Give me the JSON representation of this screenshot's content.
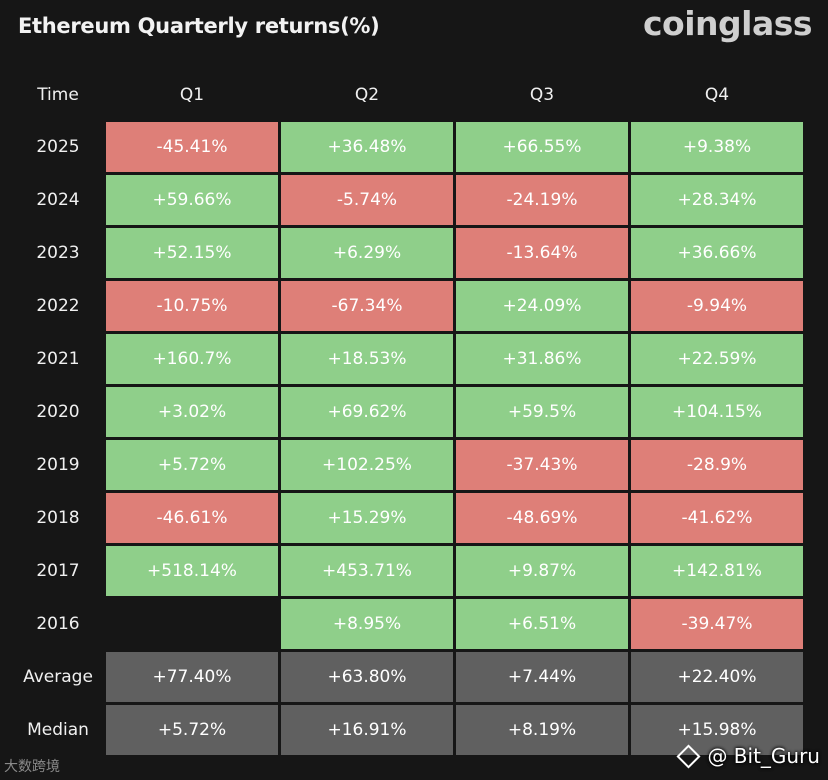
{
  "header": {
    "title": "Ethereum Quarterly returns(%)",
    "brand": "coinglass"
  },
  "chart_data": {
    "type": "table",
    "title": "Ethereum Quarterly returns(%)",
    "columns": [
      "Time",
      "Q1",
      "Q2",
      "Q3",
      "Q4"
    ],
    "rows": [
      {
        "label": "2025",
        "cells": [
          "-45.41%",
          "+36.48%",
          "+66.55%",
          "+9.38%"
        ]
      },
      {
        "label": "2024",
        "cells": [
          "+59.66%",
          "-5.74%",
          "-24.19%",
          "+28.34%"
        ]
      },
      {
        "label": "2023",
        "cells": [
          "+52.15%",
          "+6.29%",
          "-13.64%",
          "+36.66%"
        ]
      },
      {
        "label": "2022",
        "cells": [
          "-10.75%",
          "-67.34%",
          "+24.09%",
          "-9.94%"
        ]
      },
      {
        "label": "2021",
        "cells": [
          "+160.7%",
          "+18.53%",
          "+31.86%",
          "+22.59%"
        ]
      },
      {
        "label": "2020",
        "cells": [
          "+3.02%",
          "+69.62%",
          "+59.5%",
          "+104.15%"
        ]
      },
      {
        "label": "2019",
        "cells": [
          "+5.72%",
          "+102.25%",
          "-37.43%",
          "-28.9%"
        ]
      },
      {
        "label": "2018",
        "cells": [
          "-46.61%",
          "+15.29%",
          "-48.69%",
          "-41.62%"
        ]
      },
      {
        "label": "2017",
        "cells": [
          "+518.14%",
          "+453.71%",
          "+9.87%",
          "+142.81%"
        ]
      },
      {
        "label": "2016",
        "cells": [
          "",
          "+8.95%",
          "+6.51%",
          "-39.47%"
        ]
      }
    ],
    "summary": [
      {
        "label": "Average",
        "cells": [
          "+77.40%",
          "+63.80%",
          "+7.44%",
          "+22.40%"
        ]
      },
      {
        "label": "Median",
        "cells": [
          "+5.72%",
          "+16.91%",
          "+8.19%",
          "+15.98%"
        ]
      }
    ]
  },
  "watermarks": {
    "left": "大数跨境",
    "right": "@ Bit_Guru"
  },
  "colors": {
    "positive": "#8fcf8a",
    "negative": "#de7f78",
    "summary": "#606060",
    "background": "#161616"
  }
}
